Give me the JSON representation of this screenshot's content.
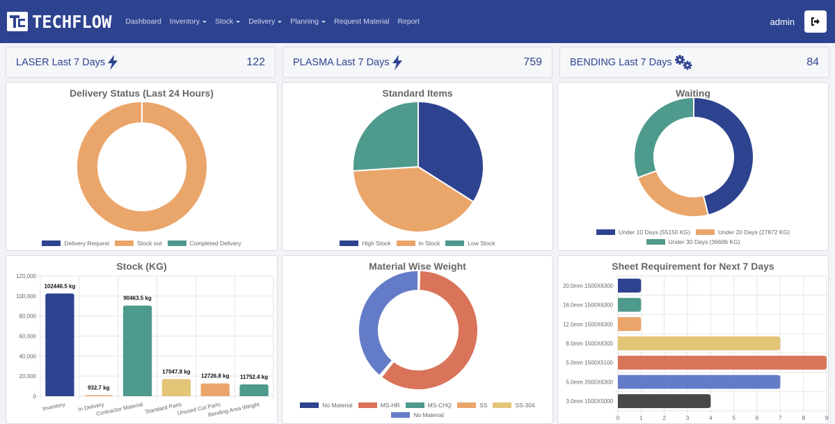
{
  "nav": {
    "brand": "TECHFLOW",
    "items": [
      {
        "label": "Dashboard",
        "dropdown": false
      },
      {
        "label": "Inventory",
        "dropdown": true
      },
      {
        "label": "Stock",
        "dropdown": true
      },
      {
        "label": "Delivery",
        "dropdown": true
      },
      {
        "label": "Planning",
        "dropdown": true
      },
      {
        "label": "Request Material",
        "dropdown": false
      },
      {
        "label": "Report",
        "dropdown": false
      }
    ],
    "user": "admin",
    "logout_icon": "sign-out-icon"
  },
  "stats": [
    {
      "label": "LASER Last 7 Days",
      "icon": "bolt-icon",
      "value": "122"
    },
    {
      "label": "PLASMA Last 7 Days",
      "icon": "bolt-icon",
      "value": "759"
    },
    {
      "label": "BENDING Last 7 Days",
      "icon": "cogs-icon",
      "value": "84"
    }
  ],
  "colors": {
    "navy": "#2e4390",
    "orange": "#eaa56b",
    "teal": "#4e9a8d",
    "yellow": "#e3c577",
    "coral": "#d9745a",
    "periwinkle": "#647bc7",
    "dark": "#474747"
  },
  "chart_data": [
    {
      "id": "delivery",
      "type": "pie",
      "variant": "doughnut",
      "title": "Delivery Status (Last 24 Hours)",
      "labels": [
        "Delivery Request",
        "Stock out",
        "Completed Delivery"
      ],
      "values": [
        0,
        1,
        0
      ],
      "colors": [
        "#2e4390",
        "#eaa56b",
        "#4e9a8d"
      ],
      "legend": "bottom"
    },
    {
      "id": "standard",
      "type": "pie",
      "title": "Standard Items",
      "labels": [
        "High Stock",
        "In Stock",
        "Low Stock"
      ],
      "values": [
        34,
        40,
        26
      ],
      "colors": [
        "#2e4390",
        "#eaa56b",
        "#4e9a8d"
      ],
      "legend": "bottom"
    },
    {
      "id": "waiting",
      "type": "pie",
      "variant": "doughnut",
      "title": "Waiting",
      "labels": [
        "Under 10 Days (55150 KG)",
        "Under 20 Days (27872 KG)",
        "Under 30 Days (36606 KG)"
      ],
      "values": [
        55150,
        27872,
        36606
      ],
      "colors": [
        "#2e4390",
        "#eaa56b",
        "#4e9a8d"
      ],
      "legend": "bottom"
    },
    {
      "id": "stock",
      "type": "bar",
      "title": "Stock (KG)",
      "categories": [
        "Inventory",
        "In Delivery",
        "Contractor Material",
        "Standard Parts",
        "Unused Cut Parts",
        "Bending Area Weight"
      ],
      "values": [
        102446.5,
        932.7,
        90463.5,
        17047.8,
        12726.8,
        11752.4
      ],
      "data_labels": [
        "102446.5 kg",
        "932.7 kg",
        "90463.5 kg",
        "17047.8 kg",
        "12726.8 kg",
        "11752.4 kg"
      ],
      "colors": [
        "#2e4390",
        "#eaa56b",
        "#4e9a8d",
        "#e3c577",
        "#eaa56b",
        "#4e9a8d"
      ],
      "ylim": [
        0,
        120000
      ],
      "yticks": [
        "0",
        "20,000",
        "40,000",
        "60,000",
        "80,000",
        "100,000",
        "120,000"
      ],
      "grid": true
    },
    {
      "id": "material",
      "type": "pie",
      "variant": "doughnut",
      "title": "Material Wise Weight",
      "labels": [
        "No Material",
        "MS-HR",
        "MS-CHQ",
        "SS",
        "SS-304",
        "No Material"
      ],
      "values": [
        0.4,
        60.2,
        0.1,
        0.2,
        0.3,
        38.8
      ],
      "colors": [
        "#2e4390",
        "#d9745a",
        "#4e9a8d",
        "#eaa56b",
        "#e3c577",
        "#647bc7"
      ],
      "legend": "bottom"
    },
    {
      "id": "sheet",
      "type": "bar",
      "orientation": "horizontal",
      "title": "Sheet Requirement for Next 7 Days",
      "categories": [
        "20.0mm 1500X6300",
        "16.0mm 1500X6300",
        "12.0mm 1500X6300",
        "8.0mm 1500X6300",
        "5.0mm 1500X5100",
        "5.0mm 2000X6300",
        "3.0mm 1500X5000"
      ],
      "values": [
        1,
        1,
        1,
        7,
        9,
        7,
        4
      ],
      "colors": [
        "#2e4390",
        "#4e9a8d",
        "#eaa56b",
        "#e3c577",
        "#d9745a",
        "#647bc7",
        "#474747"
      ],
      "xlim": [
        0,
        9
      ],
      "xticks": [
        "0",
        "1",
        "2",
        "3",
        "4",
        "5",
        "6",
        "7",
        "8",
        "9"
      ],
      "grid": true
    }
  ]
}
